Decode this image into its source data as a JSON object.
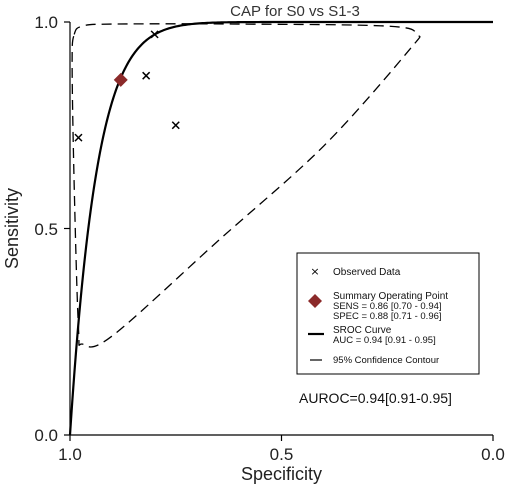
{
  "chart_data": {
    "type": "scatter",
    "title": "CAP for S0 vs S1-3",
    "xlabel": "Specificity",
    "ylabel": "Sensitivity",
    "x_reversed": true,
    "xlim": [
      1.0,
      0.0
    ],
    "ylim": [
      0.0,
      1.0
    ],
    "x_ticks": [
      "1.0",
      "0.5",
      "0.0"
    ],
    "y_ticks": [
      "0.0",
      "0.5",
      "1.0"
    ],
    "grid": false,
    "legend_position": "lower-right",
    "observed_data": [
      {
        "specificity": 0.98,
        "sensitivity": 0.72
      },
      {
        "specificity": 0.8,
        "sensitivity": 0.97
      },
      {
        "specificity": 0.82,
        "sensitivity": 0.87
      },
      {
        "specificity": 0.75,
        "sensitivity": 0.75
      }
    ],
    "summary_point": {
      "specificity": 0.88,
      "sensitivity": 0.86
    },
    "sroc_auc": 0.94,
    "confidence_contour": [
      {
        "specificity": 0.99,
        "sensitivity": 0.97
      },
      {
        "specificity": 0.97,
        "sensitivity": 0.99
      },
      {
        "specificity": 0.9,
        "sensitivity": 0.995
      },
      {
        "specificity": 0.6,
        "sensitivity": 0.995
      },
      {
        "specificity": 0.25,
        "sensitivity": 0.99
      },
      {
        "specificity": 0.18,
        "sensitivity": 0.97
      },
      {
        "specificity": 0.2,
        "sensitivity": 0.93
      },
      {
        "specificity": 0.4,
        "sensitivity": 0.7
      },
      {
        "specificity": 0.65,
        "sensitivity": 0.47
      },
      {
        "specificity": 0.9,
        "sensitivity": 0.24
      },
      {
        "specificity": 0.97,
        "sensitivity": 0.22
      },
      {
        "specificity": 0.98,
        "sensitivity": 0.26
      },
      {
        "specificity": 0.99,
        "sensitivity": 0.6
      },
      {
        "specificity": 0.995,
        "sensitivity": 0.9
      }
    ],
    "legend": {
      "observed": "Observed Data",
      "summary_title": "Summary Operating  Point",
      "summary_sens": "SENS = 0.86 [0.70 - 0.94]",
      "summary_spec": "SPEC = 0.88 [0.71 - 0.96]",
      "sroc_title": "SROC Curve",
      "sroc_auc_text": "AUC = 0.94 [0.91 - 0.95]",
      "contour": "95% Confidence Contour"
    },
    "annotation": "AUROC=0.94[0.91-0.95]"
  },
  "colors": {
    "summary_marker": "#8b2a2a",
    "curve": "#000000",
    "axis": "#000000"
  }
}
